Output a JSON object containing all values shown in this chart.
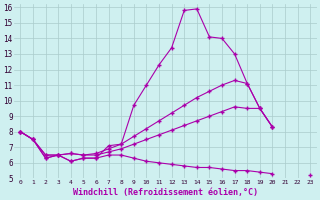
{
  "xlabel": "Windchill (Refroidissement éolien,°C)",
  "bg_color": "#cff0f0",
  "line_color": "#aa00aa",
  "grid_color": "#aacccc",
  "x": [
    0,
    1,
    2,
    3,
    4,
    5,
    6,
    7,
    8,
    9,
    10,
    11,
    12,
    13,
    14,
    15,
    16,
    17,
    18,
    19,
    20,
    21,
    22,
    23
  ],
  "line1": [
    8.0,
    7.5,
    6.3,
    6.5,
    6.1,
    6.3,
    6.3,
    7.1,
    7.2,
    9.7,
    11.0,
    12.3,
    13.4,
    15.8,
    15.9,
    14.1,
    14.0,
    13.0,
    11.1,
    9.5,
    8.3,
    null,
    null,
    null
  ],
  "line2": [
    8.0,
    7.5,
    6.5,
    6.5,
    6.6,
    6.5,
    6.6,
    6.9,
    7.2,
    7.7,
    8.2,
    8.7,
    9.2,
    9.7,
    10.2,
    10.6,
    11.0,
    11.3,
    11.1,
    9.5,
    8.3,
    null,
    null,
    null
  ],
  "line3": [
    8.0,
    7.5,
    6.5,
    6.5,
    6.6,
    6.5,
    6.5,
    6.7,
    6.9,
    7.2,
    7.5,
    7.8,
    8.1,
    8.4,
    8.7,
    9.0,
    9.3,
    9.6,
    9.5,
    9.5,
    8.3,
    null,
    null,
    null
  ],
  "line4": [
    8.0,
    7.5,
    6.3,
    6.5,
    6.1,
    6.3,
    6.3,
    6.5,
    6.5,
    6.3,
    6.1,
    6.0,
    5.9,
    5.8,
    5.7,
    5.7,
    5.6,
    5.5,
    5.5,
    5.4,
    5.3,
    null,
    null,
    5.2
  ],
  "xlim": [
    -0.5,
    23.5
  ],
  "ylim": [
    5,
    16.2
  ],
  "yticks": [
    5,
    6,
    7,
    8,
    9,
    10,
    11,
    12,
    13,
    14,
    15,
    16
  ],
  "xticks": [
    0,
    1,
    2,
    3,
    4,
    5,
    6,
    7,
    8,
    9,
    10,
    11,
    12,
    13,
    14,
    15,
    16,
    17,
    18,
    19,
    20,
    21,
    22,
    23
  ]
}
